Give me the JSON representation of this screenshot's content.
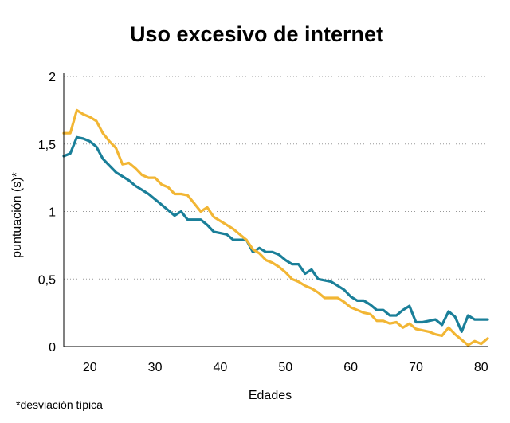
{
  "chart_data": {
    "type": "line",
    "title": "Uso excesivo de internet",
    "xlabel": "Edades",
    "ylabel": "puntuación (s)*",
    "footnote": "*desviación típica",
    "xlim": [
      16,
      81
    ],
    "ylim": [
      0,
      2
    ],
    "x_ticks": [
      20,
      30,
      40,
      50,
      60,
      70,
      80
    ],
    "y_ticks": [
      0,
      0.5,
      1,
      1.5,
      2
    ],
    "y_tick_labels": [
      "0",
      "0,5",
      "1",
      "1,5",
      "2"
    ],
    "grid": "horizontal-dotted",
    "legend": "none",
    "x": [
      16,
      17,
      18,
      19,
      20,
      21,
      22,
      23,
      24,
      25,
      26,
      27,
      28,
      29,
      30,
      31,
      32,
      33,
      34,
      35,
      36,
      37,
      38,
      39,
      40,
      41,
      42,
      43,
      44,
      45,
      46,
      47,
      48,
      49,
      50,
      51,
      52,
      53,
      54,
      55,
      56,
      57,
      58,
      59,
      60,
      61,
      62,
      63,
      64,
      65,
      66,
      67,
      68,
      69,
      70,
      71,
      72,
      73,
      74,
      75,
      76,
      77,
      78,
      79,
      80,
      81
    ],
    "series": [
      {
        "color": "#1a7f99",
        "values": [
          1.41,
          1.43,
          1.55,
          1.54,
          1.52,
          1.48,
          1.39,
          1.34,
          1.29,
          1.26,
          1.23,
          1.19,
          1.16,
          1.13,
          1.09,
          1.05,
          1.01,
          0.97,
          1.0,
          0.94,
          0.94,
          0.94,
          0.9,
          0.85,
          0.84,
          0.83,
          0.79,
          0.79,
          0.79,
          0.7,
          0.73,
          0.7,
          0.7,
          0.68,
          0.64,
          0.61,
          0.61,
          0.54,
          0.57,
          0.5,
          0.49,
          0.48,
          0.45,
          0.42,
          0.37,
          0.34,
          0.34,
          0.31,
          0.27,
          0.27,
          0.23,
          0.23,
          0.27,
          0.3,
          0.18,
          0.18,
          0.19,
          0.2,
          0.16,
          0.26,
          0.22,
          0.11,
          0.23,
          0.2,
          0.2,
          0.2
        ]
      },
      {
        "color": "#f2b634",
        "values": [
          1.58,
          1.58,
          1.75,
          1.72,
          1.7,
          1.67,
          1.58,
          1.52,
          1.47,
          1.35,
          1.36,
          1.32,
          1.27,
          1.25,
          1.25,
          1.2,
          1.18,
          1.13,
          1.13,
          1.12,
          1.06,
          1.0,
          1.03,
          0.96,
          0.93,
          0.9,
          0.87,
          0.83,
          0.79,
          0.72,
          0.69,
          0.64,
          0.62,
          0.59,
          0.55,
          0.5,
          0.48,
          0.45,
          0.43,
          0.4,
          0.36,
          0.36,
          0.36,
          0.33,
          0.29,
          0.27,
          0.25,
          0.24,
          0.19,
          0.19,
          0.17,
          0.18,
          0.14,
          0.17,
          0.13,
          0.12,
          0.11,
          0.09,
          0.08,
          0.14,
          0.09,
          0.05,
          0.01,
          0.04,
          0.02,
          0.06
        ]
      }
    ]
  }
}
